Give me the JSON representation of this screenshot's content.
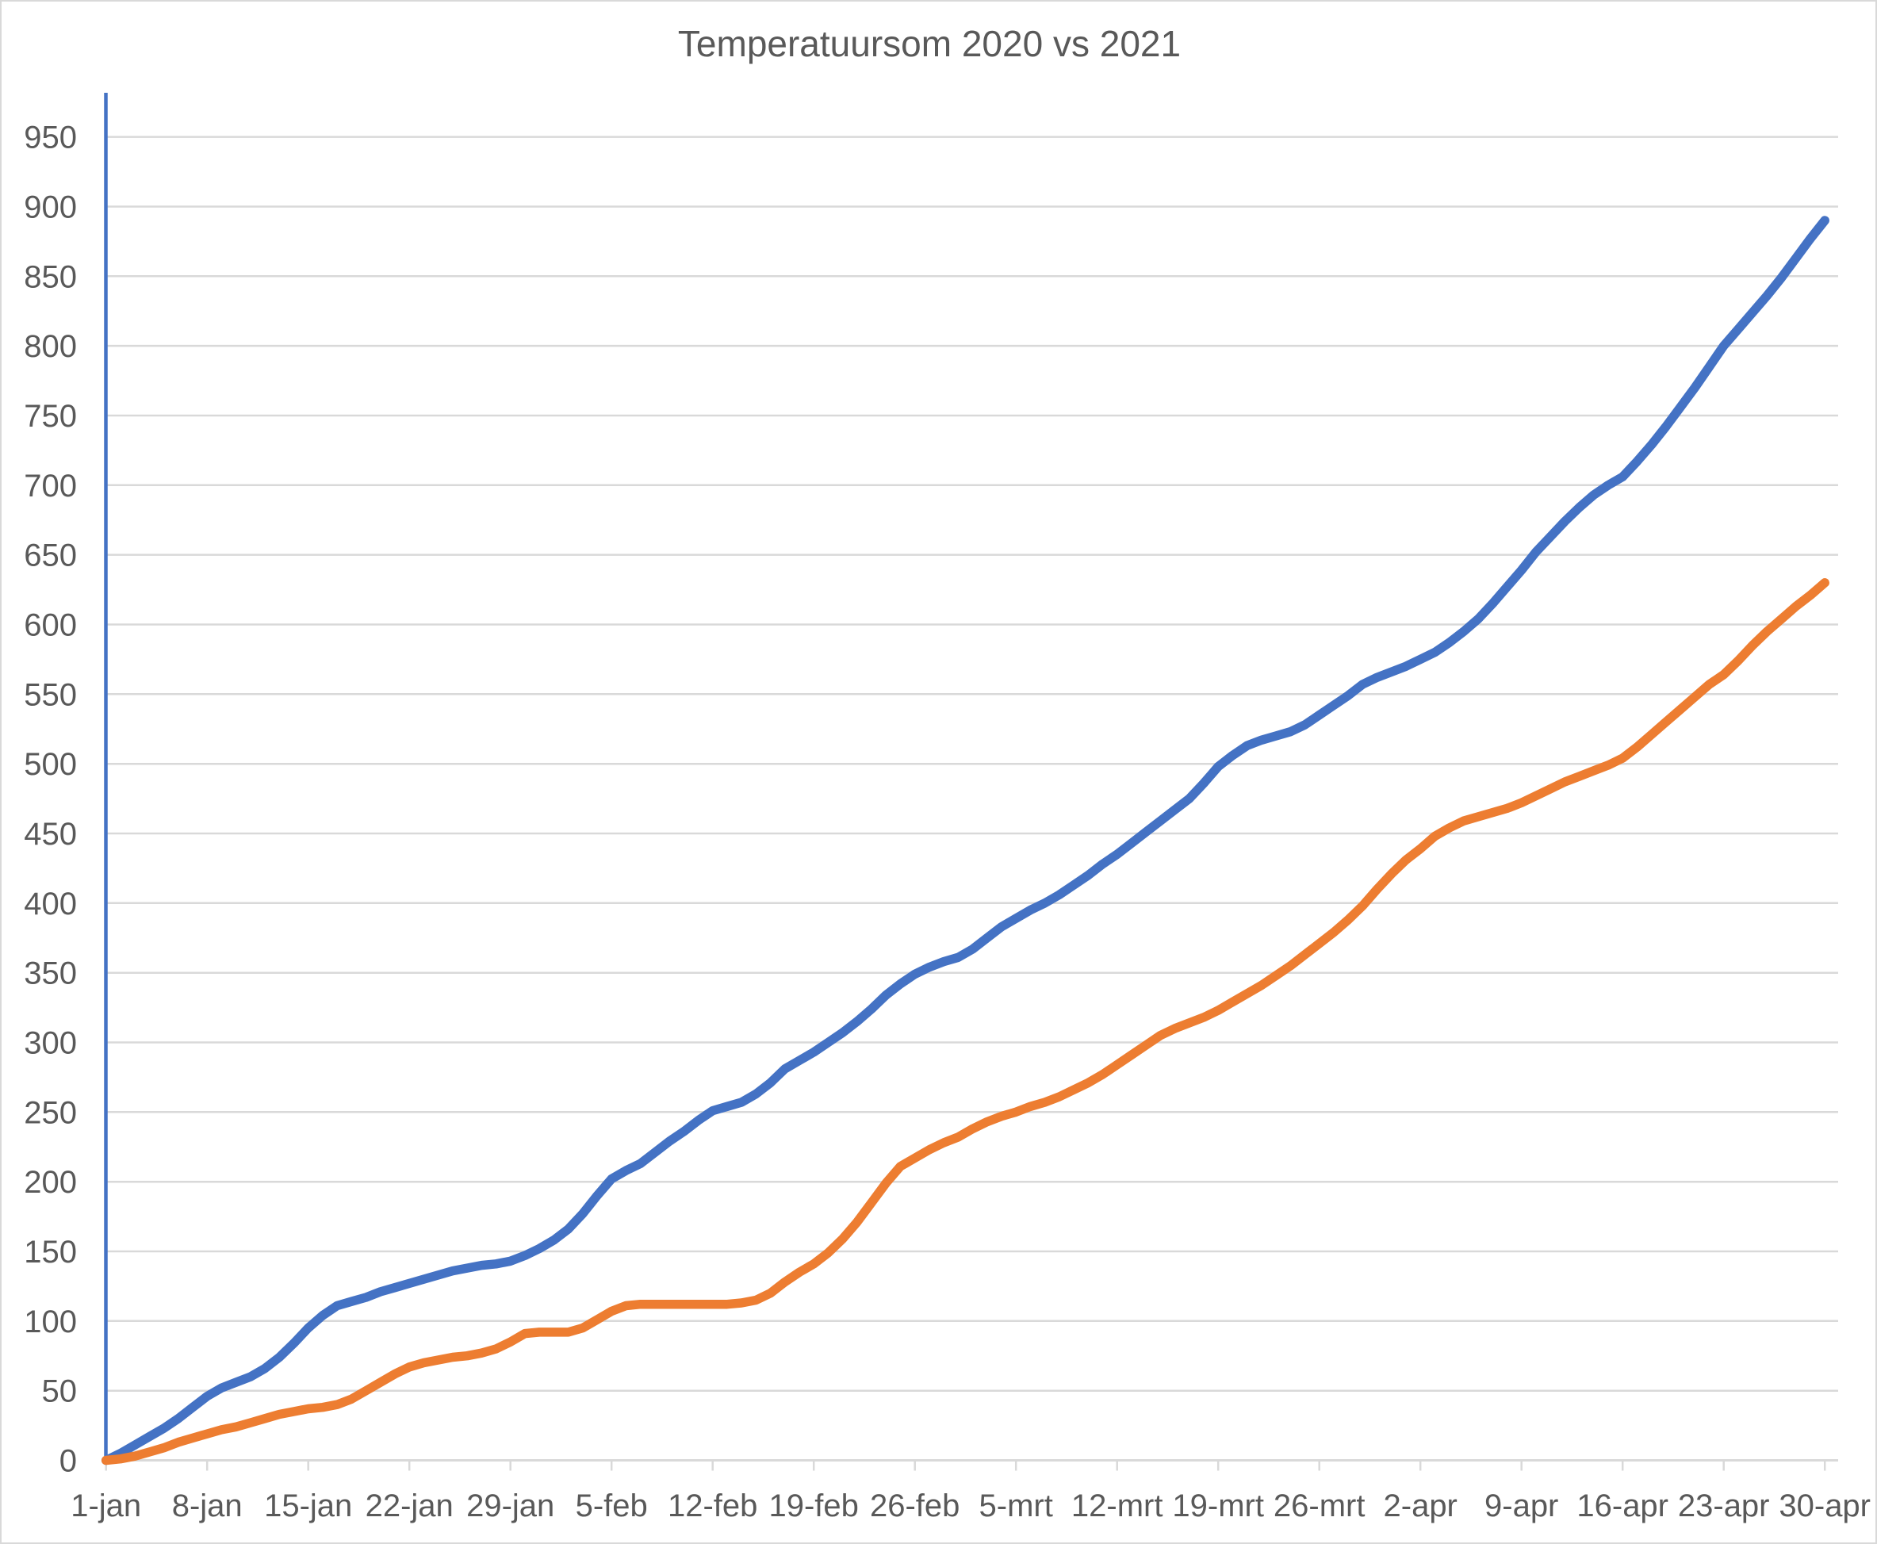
{
  "chart_data": {
    "type": "line",
    "title": "Temperatuursom 2020 vs 2021",
    "xlabel": "",
    "ylabel": "",
    "ylim": [
      0,
      950
    ],
    "y_tick_step": 50,
    "grid": "horizontal",
    "legend": "none",
    "x_tick_labels": [
      "1-jan",
      "8-jan",
      "15-jan",
      "22-jan",
      "29-jan",
      "5-feb",
      "12-feb",
      "19-feb",
      "26-feb",
      "5-mrt",
      "12-mrt",
      "19-mrt",
      "26-mrt",
      "2-apr",
      "9-apr",
      "16-apr",
      "23-apr",
      "30-apr"
    ],
    "x_points_per_tick": 7,
    "colors": {
      "grid": "#d9d9d9",
      "tick": "#d9d9d9",
      "text": "#595959",
      "y_axis_line": "#4472c4"
    },
    "series": [
      {
        "name": "2020",
        "color": "#4472c4",
        "values": [
          0,
          5,
          11,
          17,
          23,
          30,
          38,
          46,
          52,
          56,
          60,
          66,
          74,
          84,
          95,
          104,
          111,
          114,
          117,
          121,
          124,
          127,
          130,
          133,
          136,
          138,
          140,
          141,
          143,
          147,
          152,
          158,
          166,
          177,
          190,
          202,
          208,
          213,
          221,
          229,
          236,
          244,
          251,
          254,
          257,
          263,
          271,
          281,
          287,
          293,
          300,
          307,
          315,
          324,
          334,
          342,
          349,
          354,
          358,
          361,
          367,
          375,
          383,
          389,
          395,
          400,
          406,
          413,
          420,
          428,
          435,
          443,
          451,
          459,
          467,
          475,
          486,
          498,
          506,
          513,
          517,
          520,
          523,
          528,
          535,
          542,
          549,
          557,
          562,
          566,
          570,
          575,
          580,
          587,
          595,
          604,
          615,
          627,
          639,
          652,
          663,
          674,
          684,
          693,
          700,
          706,
          717,
          729,
          742,
          756,
          770,
          785,
          800,
          812,
          824,
          836,
          849,
          863,
          877,
          890
        ]
      },
      {
        "name": "2021",
        "color": "#ed7d31",
        "values": [
          0,
          1,
          3,
          6,
          9,
          13,
          16,
          19,
          22,
          24,
          27,
          30,
          33,
          35,
          37,
          38,
          40,
          44,
          50,
          56,
          62,
          67,
          70,
          72,
          74,
          75,
          77,
          80,
          85,
          91,
          92,
          92,
          92,
          95,
          101,
          107,
          111,
          112,
          112,
          112,
          112,
          112,
          112,
          112,
          113,
          115,
          120,
          128,
          135,
          141,
          149,
          159,
          171,
          185,
          199,
          211,
          217,
          223,
          228,
          232,
          238,
          243,
          247,
          250,
          254,
          257,
          261,
          266,
          271,
          277,
          284,
          291,
          298,
          305,
          310,
          314,
          318,
          323,
          329,
          335,
          341,
          348,
          355,
          363,
          371,
          379,
          388,
          398,
          410,
          421,
          431,
          439,
          448,
          454,
          459,
          462,
          465,
          468,
          472,
          477,
          482,
          487,
          491,
          495,
          499,
          504,
          512,
          521,
          530,
          539,
          548,
          557,
          564,
          574,
          585,
          595,
          604,
          613,
          621,
          630
        ]
      }
    ]
  }
}
